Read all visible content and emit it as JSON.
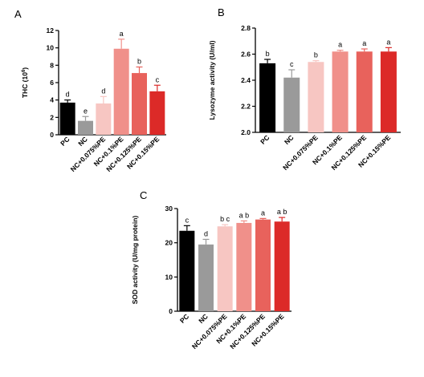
{
  "chart_data": [
    {
      "panel": "A",
      "type": "bar",
      "ylabel": "THC (10^6)",
      "ylim": [
        0,
        12
      ],
      "yticks": [
        0,
        2,
        4,
        6,
        8,
        10,
        12
      ],
      "categories": [
        "PC",
        "NC",
        "NC+0.075%PE",
        "NC+0.1%PE",
        "NC+0.125%PE",
        "NC+0.15%PE"
      ],
      "values": [
        3.7,
        1.6,
        3.6,
        9.9,
        7.1,
        5.0
      ],
      "errors": [
        0.3,
        0.5,
        0.8,
        1.1,
        0.7,
        0.7
      ],
      "letters": [
        "d",
        "e",
        "d",
        "a",
        "b",
        "c"
      ],
      "colors": [
        "#000000",
        "#9a9a9a",
        "#f7c6c2",
        "#f0908a",
        "#e8625c",
        "#dc2a28"
      ]
    },
    {
      "panel": "B",
      "type": "bar",
      "ylabel": "Lysozyme activity (U/ml)",
      "ylim": [
        2.0,
        2.8
      ],
      "yticks": [
        2.0,
        2.2,
        2.4,
        2.6,
        2.8
      ],
      "categories": [
        "PC",
        "NC",
        "NC+0.075%PE",
        "NC+0.1%PE",
        "NC+0.125%PE",
        "NC+0.15%PE"
      ],
      "values": [
        2.53,
        2.42,
        2.54,
        2.62,
        2.62,
        2.62
      ],
      "errors": [
        0.03,
        0.06,
        0.01,
        0.01,
        0.02,
        0.03
      ],
      "letters": [
        "b",
        "c",
        "b",
        "a",
        "a",
        "a"
      ],
      "colors": [
        "#000000",
        "#9a9a9a",
        "#f7c6c2",
        "#f0908a",
        "#e8625c",
        "#dc2a28"
      ]
    },
    {
      "panel": "C",
      "type": "bar",
      "ylabel": "SOD activity (U/mg protein)",
      "ylim": [
        0,
        30
      ],
      "yticks": [
        0,
        10,
        20,
        30
      ],
      "categories": [
        "PC",
        "NC",
        "NC+0.075%PE",
        "NC+0.1%PE",
        "NC+0.125%PE",
        "NC+0.15%PE"
      ],
      "values": [
        23.5,
        19.5,
        24.8,
        25.8,
        26.8,
        26.2
      ],
      "errors": [
        1.5,
        1.5,
        0.5,
        0.6,
        0.3,
        1.2
      ],
      "letters": [
        "c",
        "d",
        "b c",
        "a b",
        "a",
        "a b"
      ],
      "colors": [
        "#000000",
        "#9a9a9a",
        "#f7c6c2",
        "#f0908a",
        "#e8625c",
        "#dc2a28"
      ]
    }
  ]
}
